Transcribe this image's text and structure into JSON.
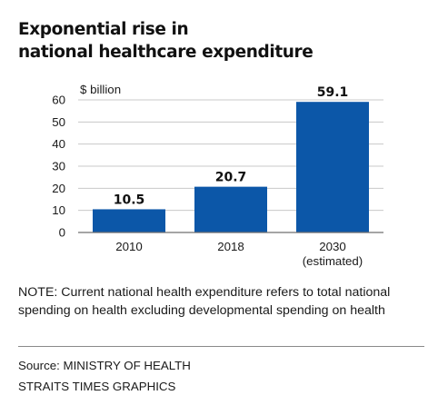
{
  "title_lines": [
    "Exponential rise in",
    "national healthcare expenditure"
  ],
  "note": "NOTE: Current national health expenditure refers to total national spending on health excluding developmental spending on health",
  "source": "Source: MINISTRY OF HEALTH",
  "credit": "STRAITS TIMES GRAPHICS",
  "colors": {
    "bar": "#0c57a8",
    "grid": "#c8c8c8",
    "axis": "#6f6f6f",
    "text": "#1a1a1a"
  },
  "chart_data": {
    "type": "bar",
    "title": "Exponential rise in national healthcare expenditure",
    "ylabel": "$ billion",
    "xlabel": "",
    "ylim": [
      0,
      60
    ],
    "yticks": [
      0,
      10,
      20,
      30,
      40,
      50,
      60
    ],
    "grid": true,
    "categories": [
      "2010",
      "2018",
      "2030"
    ],
    "category_sublabels": [
      "",
      "",
      "(estimated)"
    ],
    "values": [
      10.5,
      20.7,
      59.1
    ],
    "data_labels": [
      "10.5",
      "20.7",
      "59.1"
    ]
  }
}
